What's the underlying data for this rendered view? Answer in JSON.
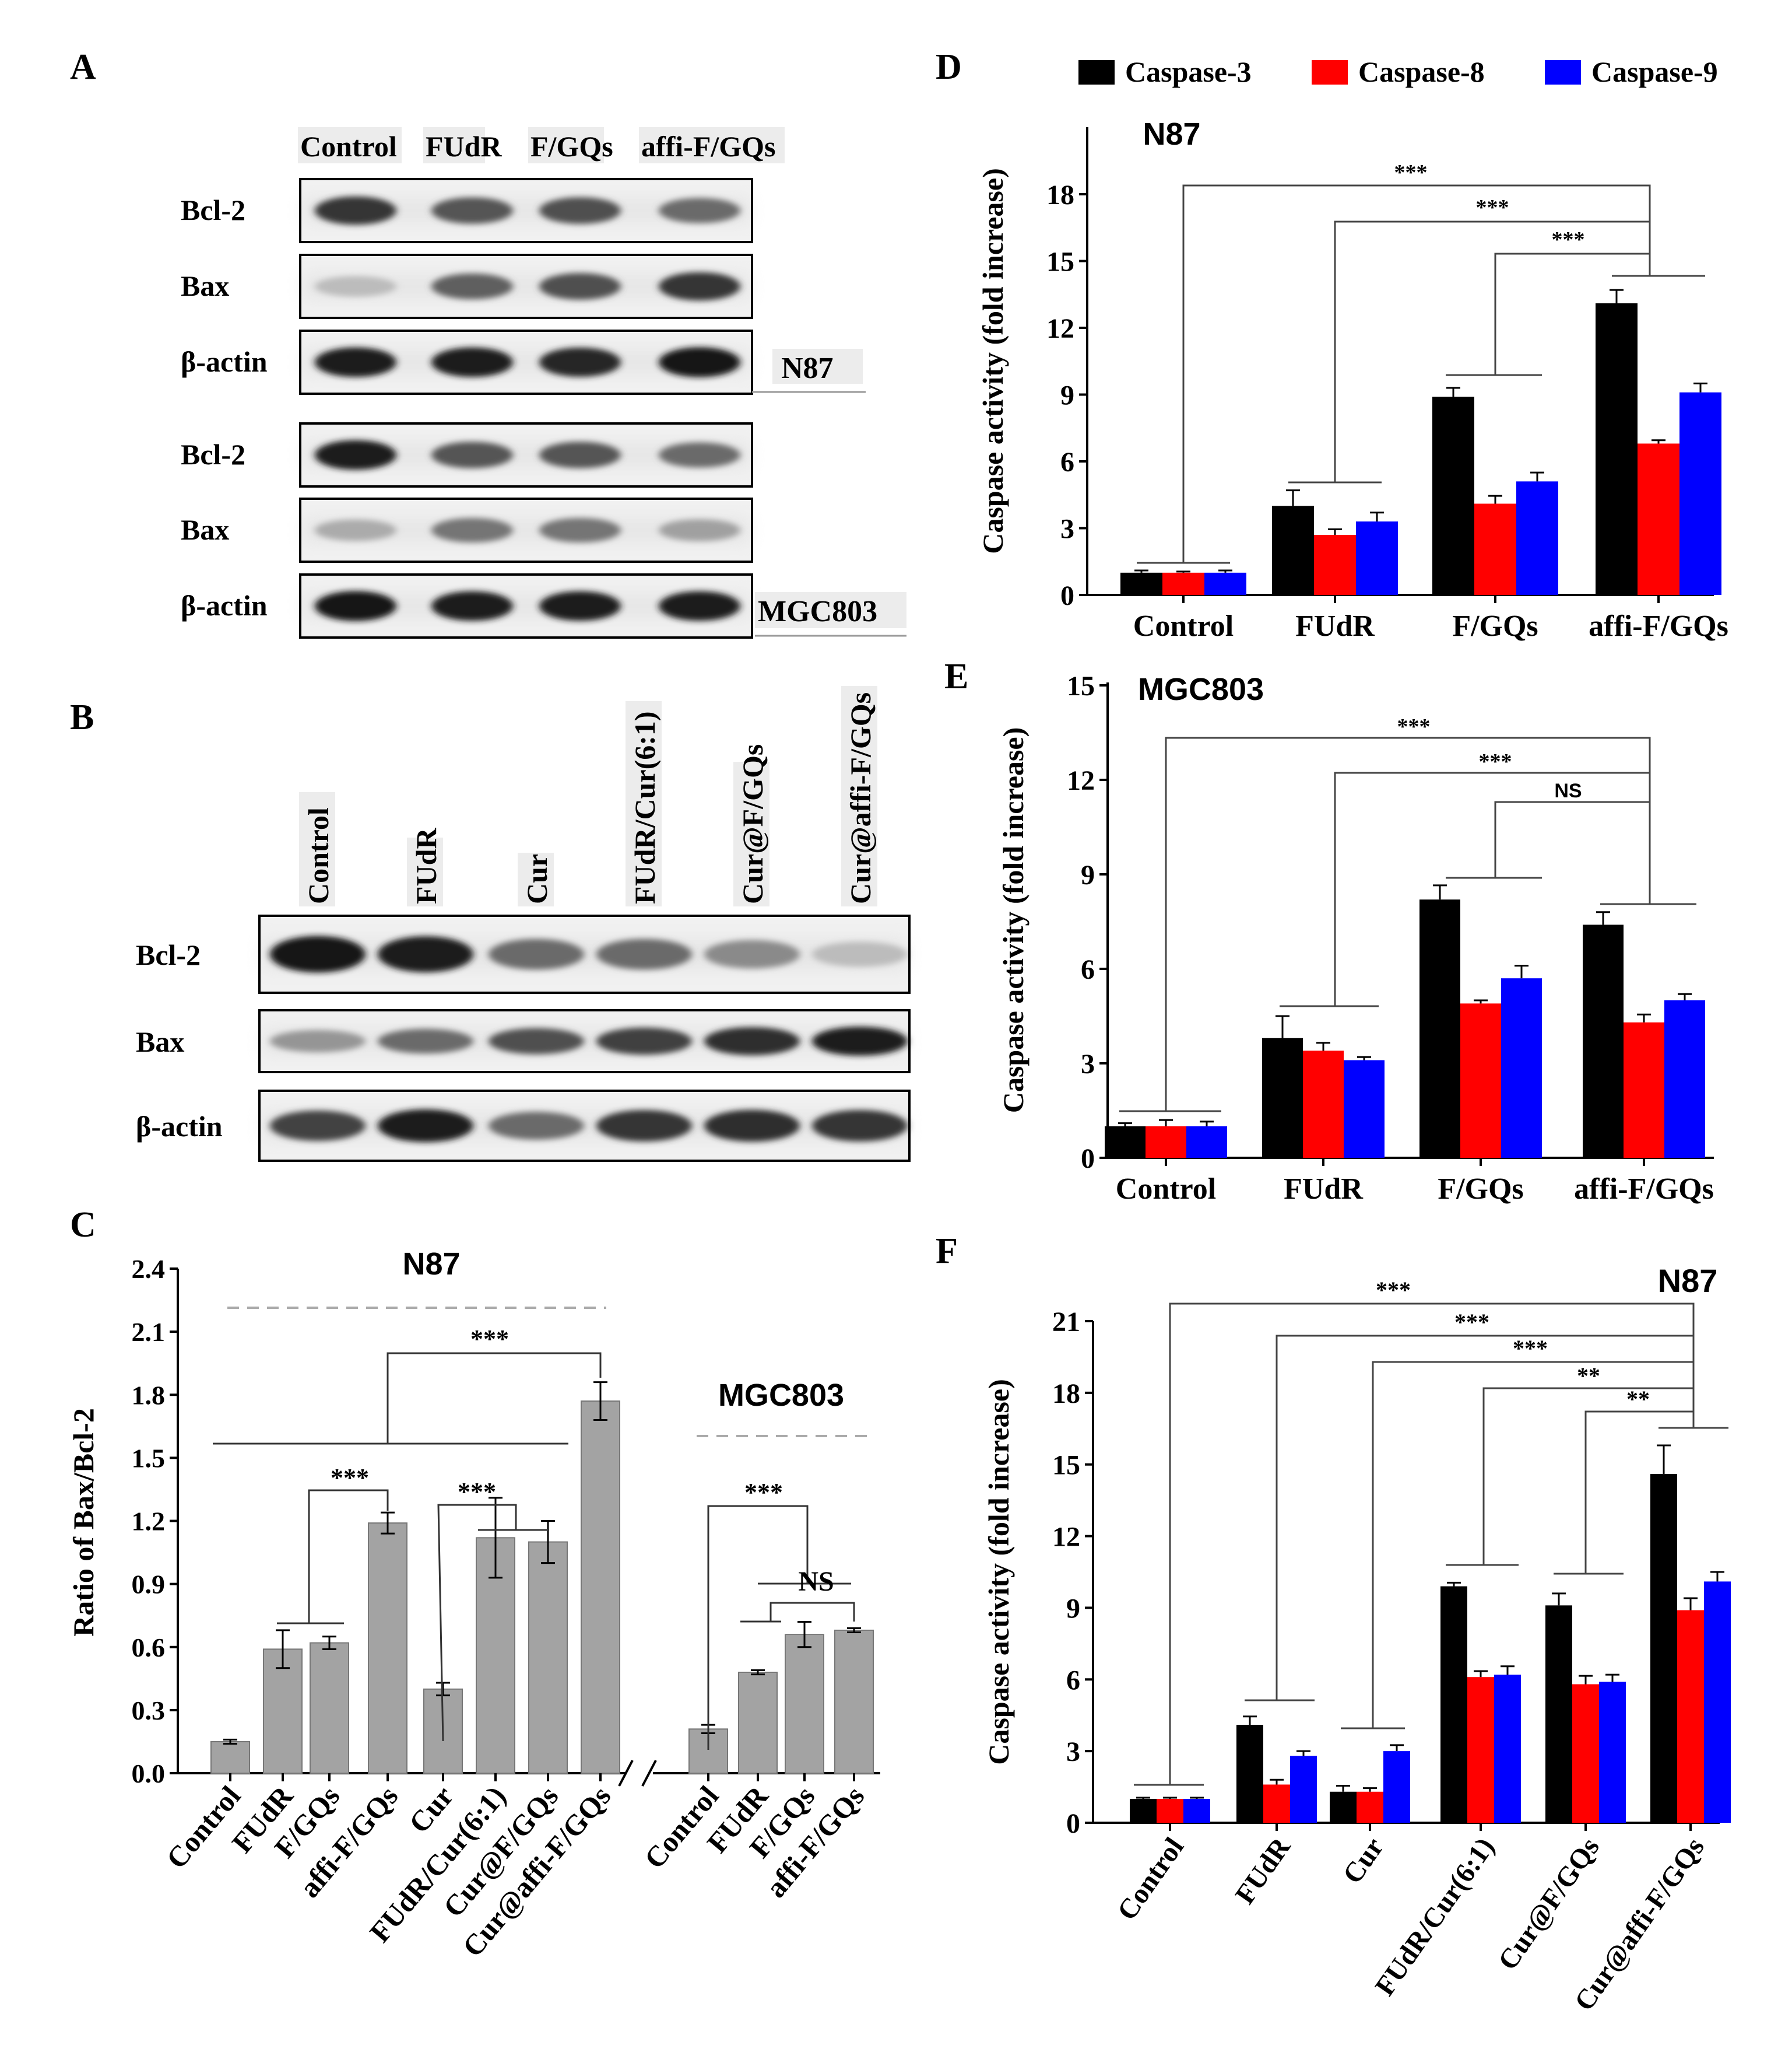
{
  "panels": {
    "A": {
      "letter": "A",
      "lanes": [
        "Control",
        "FUdR",
        "F/GQs",
        "affi-F/GQs"
      ],
      "blocks": [
        {
          "cell": "N87",
          "rows": [
            "Bcl-2",
            "Bax",
            "β-actin"
          ]
        },
        {
          "cell": "MGC803",
          "rows": [
            "Bcl-2",
            "Bax",
            "β-actin"
          ]
        }
      ]
    },
    "B": {
      "letter": "B",
      "lanes": [
        "Control",
        "FUdR",
        "Cur",
        "FUdR/Cur(6:1)",
        "Cur@F/GQs",
        "Cur@affi-F/GQs"
      ],
      "rows": [
        "Bcl-2",
        "Bax",
        "β-actin"
      ]
    }
  },
  "legend": [
    {
      "label": "Caspase-3",
      "color": "#000000"
    },
    {
      "label": "Caspase-8",
      "color": "#ff0000"
    },
    {
      "label": "Caspase-9",
      "color": "#0000ff"
    }
  ],
  "chart_data": [
    {
      "panel": "C",
      "type": "bar",
      "ylabel": "Ratio of Bax/Bcl-2",
      "ylim": [
        0,
        2.4
      ],
      "yticks": [
        "0.0",
        "0.3",
        "0.6",
        "0.9",
        "1.2",
        "1.5",
        "1.8",
        "2.1",
        "2.4"
      ],
      "groups": [
        {
          "title": "N87",
          "categories": [
            "Control",
            "FUdR",
            "F/GQs",
            "affi-F/GQs",
            "Cur",
            "FUdR/Cur(6:1)",
            "Cur@F/GQs",
            "Cur@affi-F/GQs"
          ],
          "values": [
            0.15,
            0.59,
            0.62,
            1.19,
            0.4,
            1.12,
            1.1,
            1.77
          ],
          "errors": [
            0.01,
            0.09,
            0.03,
            0.05,
            0.03,
            0.19,
            0.1,
            0.09
          ]
        },
        {
          "title": "MGC803",
          "categories": [
            "Control",
            "FUdR",
            "F/GQs",
            "affi-F/GQs"
          ],
          "values": [
            0.21,
            0.48,
            0.66,
            0.68
          ],
          "errors": [
            0.02,
            0.01,
            0.06,
            0.01
          ]
        }
      ],
      "annotations": [
        "***",
        "***",
        "***",
        "***",
        "NS"
      ],
      "bar_color": "#a3a3a3"
    },
    {
      "panel": "D",
      "type": "bar",
      "title": "N87",
      "ylabel": "Caspase activity (fold increase)",
      "ylim": [
        0,
        21
      ],
      "yticks": [
        "0",
        "3",
        "6",
        "9",
        "12",
        "15",
        "18"
      ],
      "categories": [
        "Control",
        "FUdR",
        "F/GQs",
        "affi-F/GQs"
      ],
      "series": [
        {
          "name": "Caspase-3",
          "values": [
            1.0,
            4.0,
            8.9,
            13.1
          ],
          "errors": [
            0.1,
            0.7,
            0.4,
            0.6
          ]
        },
        {
          "name": "Caspase-8",
          "values": [
            1.0,
            2.7,
            4.1,
            6.8
          ],
          "errors": [
            0.05,
            0.25,
            0.35,
            0.15
          ]
        },
        {
          "name": "Caspase-9",
          "values": [
            1.0,
            3.3,
            5.1,
            9.1
          ],
          "errors": [
            0.1,
            0.4,
            0.4,
            0.4
          ]
        }
      ],
      "annotations": [
        "***",
        "***",
        "***"
      ]
    },
    {
      "panel": "E",
      "type": "bar",
      "title": "MGC803",
      "ylabel": "Caspase activity (fold increase)",
      "ylim": [
        0,
        15
      ],
      "yticks": [
        "0",
        "3",
        "6",
        "9",
        "12",
        "15"
      ],
      "categories": [
        "Control",
        "FUdR",
        "F/GQs",
        "affi-F/GQs"
      ],
      "series": [
        {
          "name": "Caspase-3",
          "values": [
            1.0,
            3.8,
            8.2,
            7.4
          ],
          "errors": [
            0.1,
            0.7,
            0.45,
            0.4
          ]
        },
        {
          "name": "Caspase-8",
          "values": [
            1.0,
            3.4,
            4.9,
            4.3
          ],
          "errors": [
            0.2,
            0.25,
            0.1,
            0.25
          ]
        },
        {
          "name": "Caspase-9",
          "values": [
            1.0,
            3.1,
            5.7,
            5.0
          ],
          "errors": [
            0.15,
            0.1,
            0.4,
            0.2
          ]
        }
      ],
      "annotations": [
        "***",
        "***",
        "NS"
      ]
    },
    {
      "panel": "F",
      "type": "bar",
      "title": "N87",
      "ylabel": "Caspase activity (fold increase)",
      "ylim": [
        0,
        21
      ],
      "yticks": [
        "0",
        "3",
        "6",
        "9",
        "12",
        "15",
        "18",
        "21"
      ],
      "categories": [
        "Control",
        "FUdR",
        "Cur",
        "FUdR/Cur(6:1)",
        "Cur@F/GQs",
        "Cur@affi-F/GQs"
      ],
      "series": [
        {
          "name": "Caspase-3",
          "values": [
            1.0,
            4.1,
            1.3,
            9.9,
            9.1,
            14.6
          ],
          "errors": [
            0.05,
            0.35,
            0.25,
            0.15,
            0.5,
            1.2
          ]
        },
        {
          "name": "Caspase-8",
          "values": [
            1.0,
            1.6,
            1.3,
            6.1,
            5.8,
            8.9
          ],
          "errors": [
            0.05,
            0.2,
            0.15,
            0.25,
            0.35,
            0.5
          ]
        },
        {
          "name": "Caspase-9",
          "values": [
            1.0,
            2.8,
            3.0,
            6.2,
            5.9,
            10.1
          ],
          "errors": [
            0.05,
            0.2,
            0.25,
            0.35,
            0.3,
            0.4
          ]
        }
      ],
      "annotations": [
        "***",
        "***",
        "***",
        "**",
        "**"
      ]
    }
  ]
}
